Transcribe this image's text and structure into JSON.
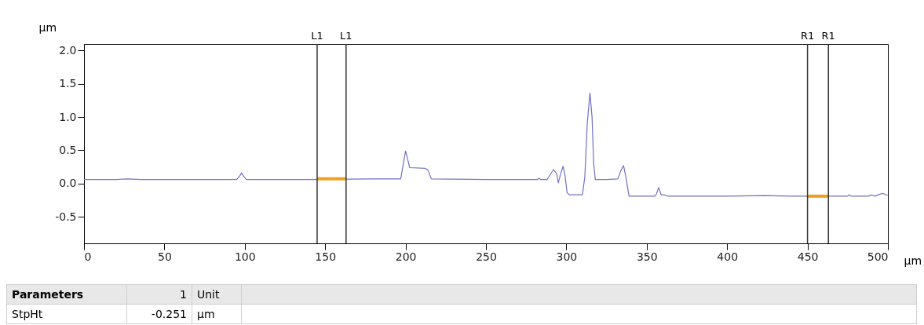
{
  "chart_data": {
    "type": "line",
    "xlabel": "µm",
    "ylabel": "µm",
    "xlim": [
      0,
      500
    ],
    "ylim": [
      -0.9,
      2.1
    ],
    "xticks": [
      0,
      50,
      100,
      150,
      200,
      250,
      300,
      350,
      400,
      450,
      500
    ],
    "yticks": [
      {
        "value": -0.5,
        "label": "-0.5"
      },
      {
        "value": 0,
        "label": "0.0"
      },
      {
        "value": 0.5,
        "label": "0.5"
      },
      {
        "value": 1,
        "label": "1.0"
      },
      {
        "value": 1.5,
        "label": "1.5"
      },
      {
        "value": 2,
        "label": "2.0"
      }
    ],
    "grid": false,
    "series": [
      {
        "color": "#7070c8",
        "x": [
          0,
          20,
          27,
          35,
          95,
          97,
          98,
          99.5,
          101,
          140,
          180,
          197,
          199,
          200,
          201,
          202.5,
          212,
          214,
          216,
          250,
          282,
          283,
          284,
          288,
          292,
          294,
          295,
          296.5,
          298,
          299,
          300.5,
          302,
          310,
          311.5,
          313,
          314.7,
          316,
          317,
          318,
          325,
          332,
          334,
          335.6,
          337,
          339,
          355,
          356,
          357.4,
          359,
          361,
          363,
          400,
          423,
          440,
          475,
          476,
          477,
          488,
          489.7,
          492,
          495,
          497,
          500
        ],
        "values": [
          0.06,
          0.06,
          0.07,
          0.06,
          0.06,
          0.12,
          0.16,
          0.1,
          0.06,
          0.06,
          0.07,
          0.07,
          0.35,
          0.49,
          0.4,
          0.24,
          0.23,
          0.2,
          0.07,
          0.06,
          0.06,
          0.08,
          0.06,
          0.06,
          0.21,
          0.15,
          0.01,
          0.15,
          0.26,
          0.15,
          -0.14,
          -0.17,
          -0.17,
          0.1,
          0.9,
          1.36,
          1.0,
          0.3,
          0.06,
          0.06,
          0.07,
          0.2,
          0.27,
          0.1,
          -0.19,
          -0.19,
          -0.16,
          -0.06,
          -0.17,
          -0.17,
          -0.19,
          -0.19,
          -0.18,
          -0.19,
          -0.19,
          -0.17,
          -0.19,
          -0.19,
          -0.17,
          -0.19,
          -0.16,
          -0.15,
          -0.18
        ]
      },
      {
        "color": "#f0a020",
        "x": [
          145,
          163
        ],
        "values": [
          0.07,
          0.07
        ]
      },
      {
        "color": "#f0a020",
        "x": [
          450,
          463
        ],
        "values": [
          -0.19,
          -0.19
        ]
      }
    ],
    "ref_lines": [
      {
        "axis": "x",
        "value": 145,
        "label": "L1",
        "color": "#333333"
      },
      {
        "axis": "x",
        "value": 163,
        "label": "L1",
        "color": "#333333"
      },
      {
        "axis": "x",
        "value": 450,
        "label": "R1",
        "color": "#333333"
      },
      {
        "axis": "x",
        "value": 463,
        "label": "R1",
        "color": "#333333"
      }
    ],
    "annotations": [
      "Parameters",
      "1",
      "Unit",
      "StpHt",
      "-0.251",
      "µm"
    ]
  }
}
